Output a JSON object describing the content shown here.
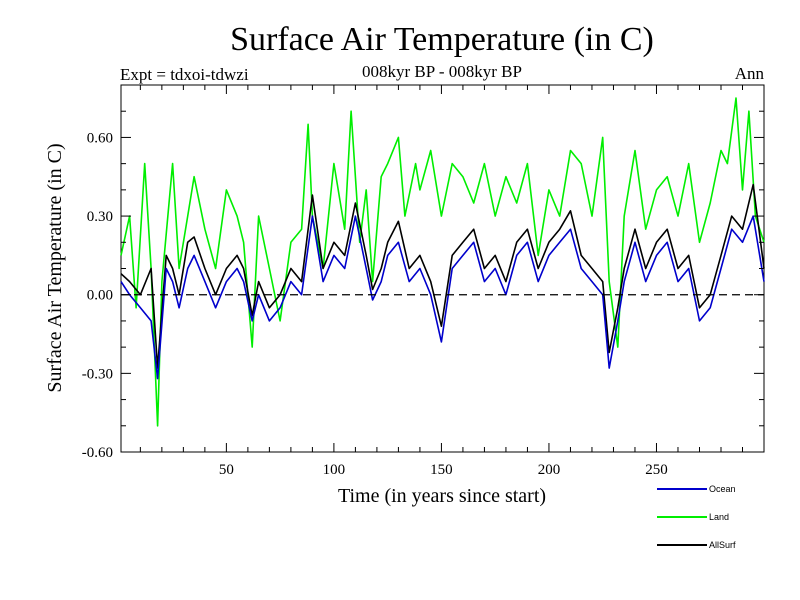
{
  "title": "Surface Air Temperature (in C)",
  "subtitle": "008kyr BP - 008kyr BP",
  "expt_label": "Expt = tdxoi-tdwzi",
  "season_label": "Ann",
  "chart_data": {
    "type": "line",
    "title": "Surface Air Temperature (in C)",
    "xlabel": "Time (in years since start)",
    "ylabel": "Surface Air Temperature (in C)",
    "xlim": [
      1,
      300
    ],
    "ylim": [
      -0.6,
      0.8
    ],
    "x_ticks": [
      50,
      100,
      150,
      200,
      250
    ],
    "y_ticks": [
      -0.6,
      -0.3,
      0.0,
      0.3,
      0.6
    ],
    "y_tick_labels": [
      "-0.60",
      "-0.30",
      "0.00",
      "0.30",
      "0.60"
    ],
    "zero_line": "dashed",
    "grid": false,
    "legend_position": "bottom-right",
    "colors": {
      "Ocean": "#0000cc",
      "Land": "#00ee00",
      "AllSurf": "#000000"
    },
    "series": [
      {
        "name": "Ocean",
        "x": [
          1,
          5,
          10,
          15,
          18,
          22,
          25,
          28,
          32,
          35,
          40,
          45,
          50,
          55,
          58,
          62,
          65,
          70,
          75,
          80,
          85,
          90,
          95,
          100,
          105,
          110,
          115,
          118,
          122,
          125,
          130,
          135,
          140,
          145,
          150,
          155,
          160,
          165,
          170,
          175,
          180,
          185,
          190,
          195,
          200,
          205,
          210,
          215,
          220,
          225,
          228,
          232,
          235,
          240,
          245,
          250,
          255,
          260,
          265,
          270,
          275,
          280,
          285,
          290,
          295,
          300
        ],
        "values": [
          0.05,
          0.0,
          -0.05,
          -0.1,
          -0.32,
          0.1,
          0.05,
          -0.05,
          0.1,
          0.15,
          0.05,
          -0.05,
          0.05,
          0.1,
          0.05,
          -0.1,
          0.0,
          -0.1,
          -0.05,
          0.05,
          0.0,
          0.3,
          0.05,
          0.15,
          0.1,
          0.3,
          0.1,
          -0.02,
          0.05,
          0.15,
          0.2,
          0.05,
          0.1,
          0.0,
          -0.18,
          0.1,
          0.15,
          0.2,
          0.05,
          0.1,
          0.0,
          0.15,
          0.2,
          0.05,
          0.15,
          0.2,
          0.25,
          0.1,
          0.05,
          0.0,
          -0.28,
          -0.1,
          0.05,
          0.2,
          0.05,
          0.15,
          0.2,
          0.05,
          0.1,
          -0.1,
          -0.05,
          0.1,
          0.25,
          0.2,
          0.3,
          0.05
        ]
      },
      {
        "name": "Land",
        "x": [
          1,
          5,
          8,
          12,
          15,
          18,
          20,
          25,
          28,
          32,
          35,
          40,
          45,
          50,
          55,
          58,
          62,
          65,
          70,
          75,
          80,
          85,
          88,
          90,
          95,
          100,
          105,
          108,
          112,
          115,
          118,
          122,
          125,
          130,
          133,
          138,
          140,
          145,
          150,
          155,
          160,
          165,
          170,
          175,
          180,
          185,
          190,
          195,
          200,
          205,
          210,
          215,
          220,
          225,
          228,
          232,
          235,
          240,
          245,
          250,
          255,
          260,
          265,
          270,
          275,
          280,
          283,
          287,
          290,
          293,
          296,
          300
        ],
        "values": [
          0.15,
          0.3,
          -0.05,
          0.5,
          0.1,
          -0.5,
          0.05,
          0.5,
          0.1,
          0.3,
          0.45,
          0.25,
          0.1,
          0.4,
          0.3,
          0.2,
          -0.2,
          0.3,
          0.1,
          -0.1,
          0.2,
          0.25,
          0.65,
          0.3,
          0.1,
          0.5,
          0.25,
          0.7,
          0.2,
          0.4,
          0.05,
          0.45,
          0.5,
          0.6,
          0.3,
          0.5,
          0.4,
          0.55,
          0.3,
          0.5,
          0.45,
          0.35,
          0.5,
          0.3,
          0.45,
          0.35,
          0.5,
          0.15,
          0.4,
          0.3,
          0.55,
          0.5,
          0.3,
          0.6,
          0.05,
          -0.2,
          0.3,
          0.55,
          0.25,
          0.4,
          0.45,
          0.3,
          0.5,
          0.2,
          0.35,
          0.55,
          0.5,
          0.75,
          0.4,
          0.7,
          0.3,
          0.2
        ]
      },
      {
        "name": "AllSurf",
        "x": [
          1,
          5,
          10,
          15,
          18,
          22,
          25,
          28,
          32,
          35,
          40,
          45,
          50,
          55,
          58,
          62,
          65,
          70,
          75,
          80,
          85,
          90,
          95,
          100,
          105,
          110,
          115,
          118,
          122,
          125,
          130,
          135,
          140,
          145,
          150,
          155,
          160,
          165,
          170,
          175,
          180,
          185,
          190,
          195,
          200,
          205,
          210,
          215,
          220,
          225,
          228,
          232,
          235,
          240,
          245,
          250,
          255,
          260,
          265,
          270,
          275,
          280,
          285,
          290,
          295,
          300
        ],
        "values": [
          0.08,
          0.05,
          0.0,
          0.1,
          -0.28,
          0.15,
          0.1,
          0.0,
          0.2,
          0.22,
          0.1,
          0.0,
          0.1,
          0.15,
          0.1,
          -0.08,
          0.05,
          -0.05,
          0.0,
          0.1,
          0.05,
          0.38,
          0.1,
          0.2,
          0.15,
          0.35,
          0.15,
          0.02,
          0.1,
          0.2,
          0.28,
          0.1,
          0.15,
          0.05,
          -0.12,
          0.15,
          0.2,
          0.25,
          0.1,
          0.15,
          0.05,
          0.2,
          0.25,
          0.1,
          0.2,
          0.25,
          0.32,
          0.15,
          0.1,
          0.05,
          -0.22,
          -0.05,
          0.1,
          0.25,
          0.1,
          0.2,
          0.25,
          0.1,
          0.15,
          -0.05,
          0.0,
          0.15,
          0.3,
          0.25,
          0.42,
          0.1
        ]
      }
    ]
  }
}
